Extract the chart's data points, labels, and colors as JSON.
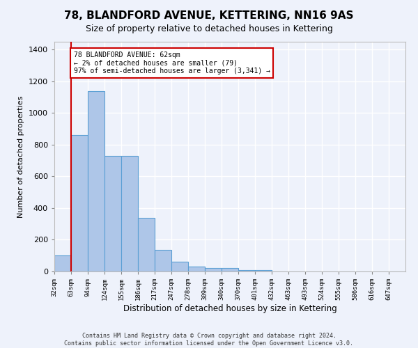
{
  "title": "78, BLANDFORD AVENUE, KETTERING, NN16 9AS",
  "subtitle": "Size of property relative to detached houses in Kettering",
  "xlabel": "Distribution of detached houses by size in Kettering",
  "ylabel": "Number of detached properties",
  "footer_line1": "Contains HM Land Registry data © Crown copyright and database right 2024.",
  "footer_line2": "Contains public sector information licensed under the Open Government Licence v3.0.",
  "bin_labels": [
    "32sqm",
    "63sqm",
    "94sqm",
    "124sqm",
    "155sqm",
    "186sqm",
    "217sqm",
    "247sqm",
    "278sqm",
    "309sqm",
    "340sqm",
    "370sqm",
    "401sqm",
    "432sqm",
    "463sqm",
    "493sqm",
    "524sqm",
    "555sqm",
    "586sqm",
    "616sqm",
    "647sqm"
  ],
  "bar_heights": [
    100,
    860,
    1140,
    730,
    730,
    340,
    135,
    60,
    30,
    20,
    20,
    10,
    10,
    0,
    0,
    0,
    0,
    0,
    0,
    0,
    0
  ],
  "bar_color": "#aec6e8",
  "bar_edge_color": "#5a9fd4",
  "property_line_color": "#cc0000",
  "ylim": [
    0,
    1450
  ],
  "yticks": [
    0,
    200,
    400,
    600,
    800,
    1000,
    1200,
    1400
  ],
  "annotation_text": "78 BLANDFORD AVENUE: 62sqm\n← 2% of detached houses are smaller (79)\n97% of semi-detached houses are larger (3,341) →",
  "annotation_box_color": "#ffffff",
  "annotation_box_edge_color": "#cc0000",
  "background_color": "#eef2fb",
  "grid_color": "#ffffff",
  "num_bins": 21,
  "bin_width": 31
}
